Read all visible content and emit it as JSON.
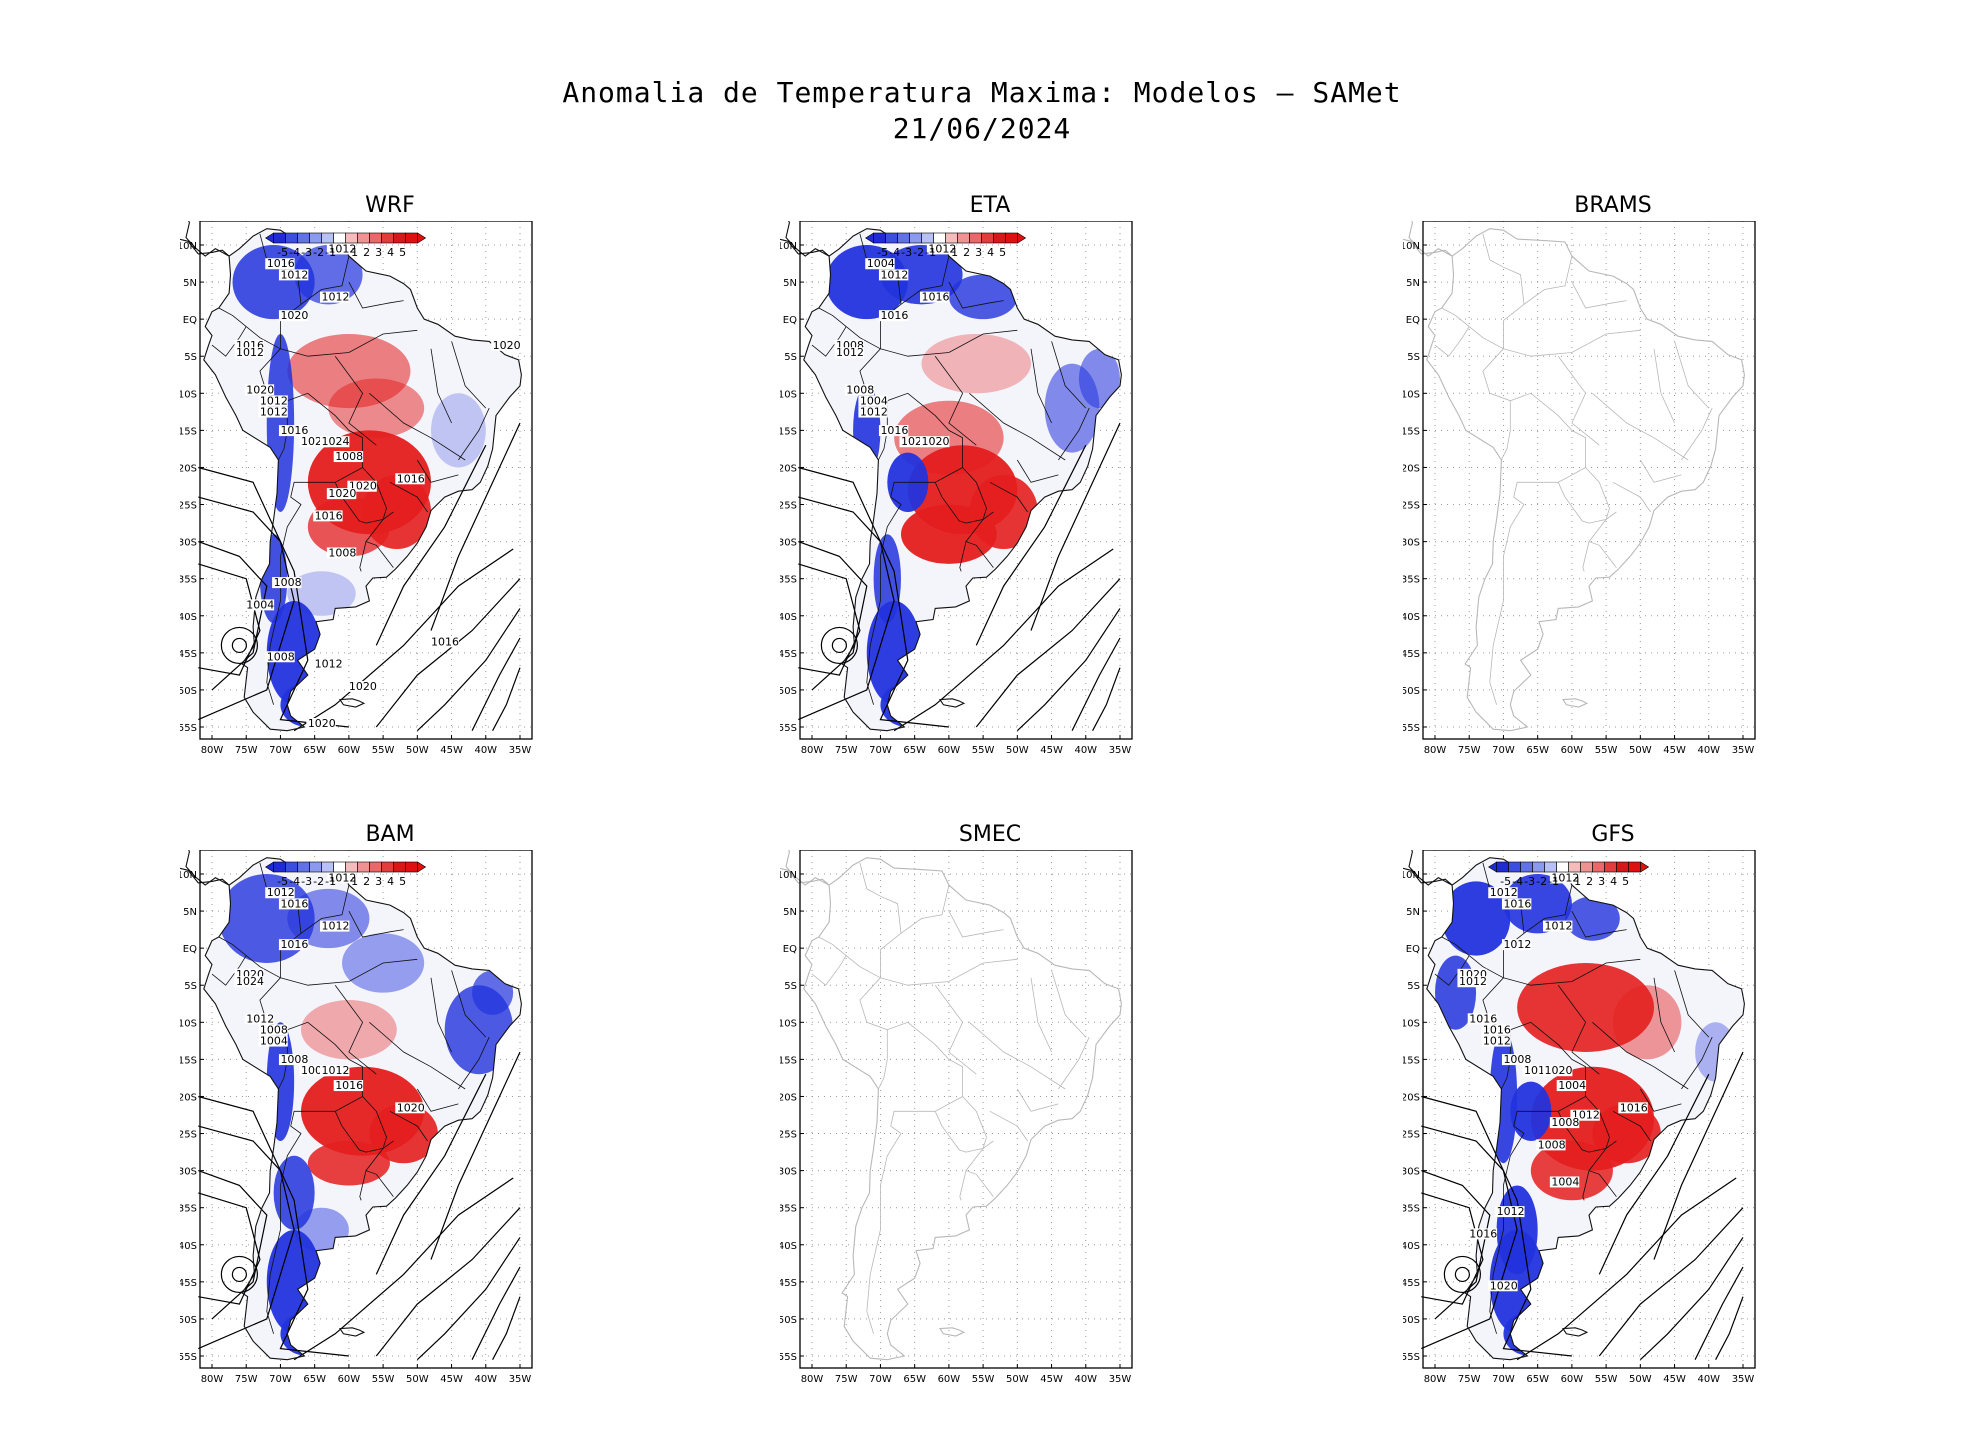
{
  "figure": {
    "title_line1": "Anomalia de Temperatura Maxima: Modelos – SAMet",
    "title_line2": "21/06/2024"
  },
  "axes": {
    "lat_ticks": [
      "10N",
      "5N",
      "EQ",
      "5S",
      "10S",
      "15S",
      "20S",
      "25S",
      "30S",
      "35S",
      "40S",
      "45S",
      "50S",
      "55S"
    ],
    "lon_ticks": [
      "80W",
      "75W",
      "70W",
      "65W",
      "60W",
      "55W",
      "50W",
      "45W",
      "40W",
      "35W"
    ]
  },
  "colorbar": {
    "labels": [
      "-5",
      "-4",
      "-3",
      "-2",
      "-1",
      "1",
      "2",
      "3",
      "4",
      "5"
    ],
    "colors": [
      "#1e2bd6",
      "#3c4ee0",
      "#5f72e8",
      "#8a9bef",
      "#b7c1f5",
      "#ffffff",
      "#f5bcbc",
      "#f09292",
      "#ea6868",
      "#e23c3c",
      "#d81818",
      "#e01010"
    ]
  },
  "colors": {
    "cold": "#2233dd",
    "warm": "#e41e1e",
    "coast_empty": "#b8b8b8",
    "grid": "#9a9a9a"
  },
  "panels": [
    {
      "name": "WRF",
      "has_data": true,
      "style": "wrf",
      "isobars": [
        {
          "label": "1012"
        },
        {
          "label": "1016"
        },
        {
          "label": "1012"
        },
        {
          "label": "1012"
        },
        {
          "label": "1020"
        },
        {
          "label": "1016"
        },
        {
          "label": "1012"
        },
        {
          "label": "1020"
        },
        {
          "label": "1012"
        },
        {
          "label": "1012"
        },
        {
          "label": "1016"
        },
        {
          "label": "1020"
        },
        {
          "label": "1024"
        },
        {
          "label": "1008"
        },
        {
          "label": "1016"
        },
        {
          "label": "1020"
        },
        {
          "label": "1020"
        },
        {
          "label": "1016"
        },
        {
          "label": "1008"
        },
        {
          "label": "1008"
        },
        {
          "label": "1004"
        },
        {
          "label": "1008"
        },
        {
          "label": "1012"
        },
        {
          "label": "1016"
        },
        {
          "label": "1020"
        },
        {
          "label": "1020"
        },
        {
          "label": "1020"
        }
      ]
    },
    {
      "name": "ETA",
      "has_data": true,
      "style": "eta",
      "isobars": [
        {
          "label": "1012"
        },
        {
          "label": "1004"
        },
        {
          "label": "1012"
        },
        {
          "label": "1016"
        },
        {
          "label": "1016"
        },
        {
          "label": "1008"
        },
        {
          "label": "1012"
        },
        {
          "label": "1008"
        },
        {
          "label": "1004"
        },
        {
          "label": "1012"
        },
        {
          "label": "1016"
        },
        {
          "label": "1020"
        },
        {
          "label": "1020"
        }
      ]
    },
    {
      "name": "BRAMS",
      "has_data": false,
      "style": "empty",
      "isobars": []
    },
    {
      "name": "BAM",
      "has_data": true,
      "style": "bam",
      "isobars": [
        {
          "label": "1012"
        },
        {
          "label": "1012"
        },
        {
          "label": "1016"
        },
        {
          "label": "1012"
        },
        {
          "label": "1016"
        },
        {
          "label": "1020"
        },
        {
          "label": "1024"
        },
        {
          "label": "1012"
        },
        {
          "label": "1008"
        },
        {
          "label": "1004"
        },
        {
          "label": "1008"
        },
        {
          "label": "1000"
        },
        {
          "label": "1012"
        },
        {
          "label": "1016"
        },
        {
          "label": "1020"
        }
      ]
    },
    {
      "name": "SMEC",
      "has_data": false,
      "style": "empty",
      "isobars": []
    },
    {
      "name": "GFS",
      "has_data": true,
      "style": "gfs",
      "isobars": [
        {
          "label": "1012"
        },
        {
          "label": "1012"
        },
        {
          "label": "1016"
        },
        {
          "label": "1012"
        },
        {
          "label": "1012"
        },
        {
          "label": "1020"
        },
        {
          "label": "1012"
        },
        {
          "label": "1016"
        },
        {
          "label": "1016"
        },
        {
          "label": "1012"
        },
        {
          "label": "1008"
        },
        {
          "label": "1016"
        },
        {
          "label": "1020"
        },
        {
          "label": "1004"
        },
        {
          "label": "1016"
        },
        {
          "label": "1012"
        },
        {
          "label": "1008"
        },
        {
          "label": "1008"
        },
        {
          "label": "1004"
        },
        {
          "label": "1012"
        },
        {
          "label": "1016"
        },
        {
          "label": "1020"
        }
      ]
    }
  ]
}
